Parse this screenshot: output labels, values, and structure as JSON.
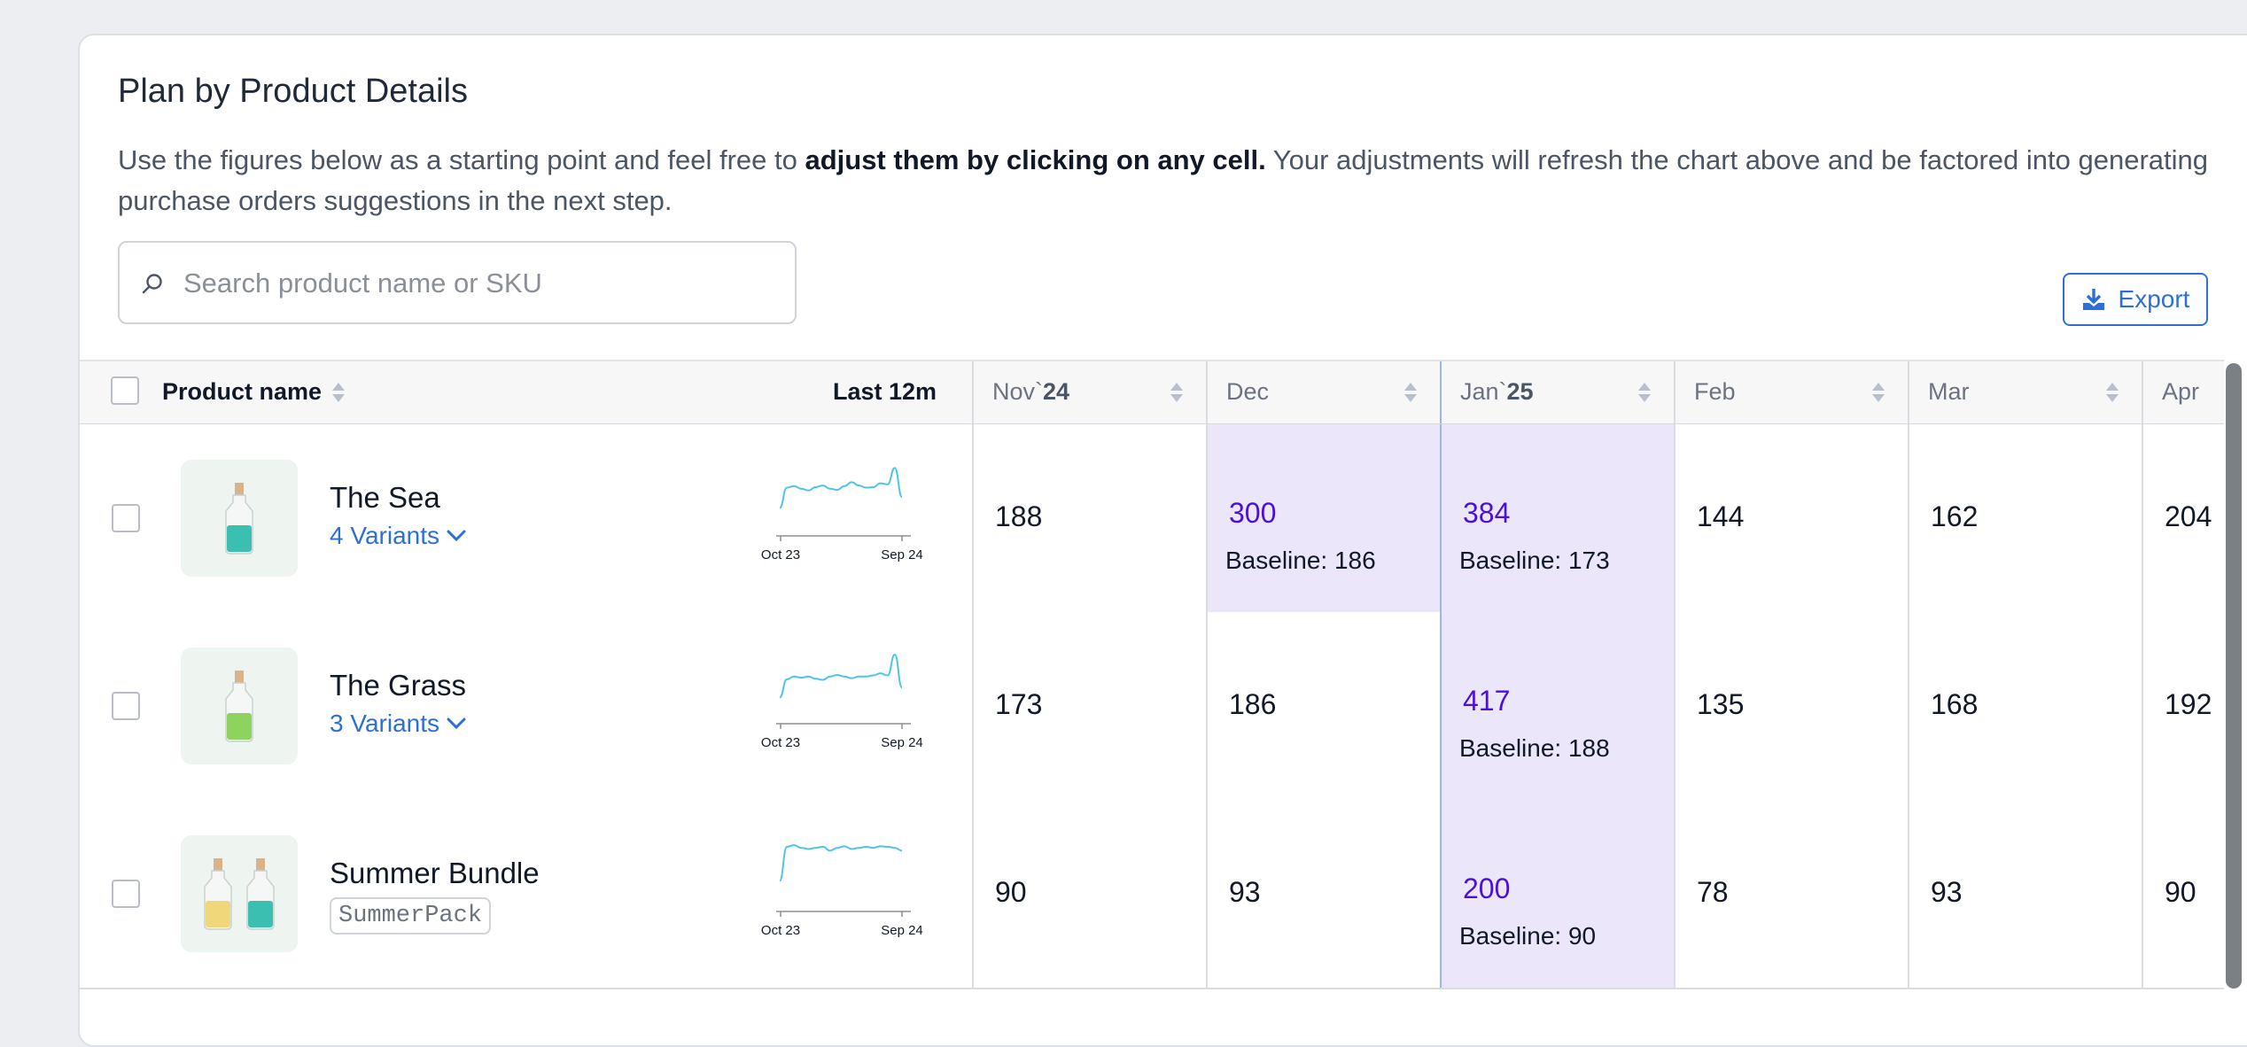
{
  "card": {
    "title": "Plan by Product Details",
    "description_pre": "Use the figures below as a starting point and feel free to ",
    "description_bold": "adjust them by clicking on any cell.",
    "description_post": " Your adjustments will refresh the chart above and be factored into generating purchase orders suggestions in the next step."
  },
  "search": {
    "placeholder": "Search product name or SKU",
    "icon": "search-icon"
  },
  "export": {
    "label": "Export",
    "icon": "download-icon"
  },
  "table": {
    "headers": {
      "product_name": "Product name",
      "last12m": "Last 12m",
      "months": [
        {
          "prefix": "Nov`",
          "bold": "24"
        },
        {
          "prefix": "Dec",
          "bold": ""
        },
        {
          "prefix": "Jan`",
          "bold": "25"
        },
        {
          "prefix": "Feb",
          "bold": ""
        },
        {
          "prefix": "Mar",
          "bold": ""
        },
        {
          "prefix": "Apr",
          "bold": ""
        }
      ]
    },
    "spark_labels": {
      "start": "Oct 23",
      "end": "Sep 24"
    },
    "rows": [
      {
        "name": "The Sea",
        "sub_type": "variants",
        "sub": "4 Variants",
        "thumb_colors": [
          "#3bbfb0"
        ],
        "spark": [
          0.25,
          0.62,
          0.65,
          0.6,
          0.57,
          0.63,
          0.66,
          0.6,
          0.58,
          0.65,
          0.72,
          0.66,
          0.62,
          0.63,
          0.7,
          0.68,
          0.98,
          0.45
        ],
        "cells": [
          {
            "value": "188",
            "adjusted": false,
            "baseline": ""
          },
          {
            "value": "300",
            "adjusted": true,
            "baseline": "Baseline: 186"
          },
          {
            "value": "384",
            "adjusted": true,
            "baseline": "Baseline: 173"
          },
          {
            "value": "144",
            "adjusted": false,
            "baseline": ""
          },
          {
            "value": "162",
            "adjusted": false,
            "baseline": ""
          },
          {
            "value": "204",
            "adjusted": false,
            "baseline": ""
          }
        ]
      },
      {
        "name": "The Grass",
        "sub_type": "variants",
        "sub": "3 Variants",
        "thumb_colors": [
          "#8fd35f"
        ],
        "spark": [
          0.22,
          0.55,
          0.6,
          0.58,
          0.6,
          0.56,
          0.54,
          0.6,
          0.63,
          0.6,
          0.57,
          0.6,
          0.6,
          0.62,
          0.66,
          0.62,
          1.0,
          0.4
        ],
        "cells": [
          {
            "value": "173",
            "adjusted": false,
            "baseline": ""
          },
          {
            "value": "186",
            "adjusted": false,
            "baseline": ""
          },
          {
            "value": "417",
            "adjusted": true,
            "baseline": "Baseline: 188"
          },
          {
            "value": "135",
            "adjusted": false,
            "baseline": ""
          },
          {
            "value": "168",
            "adjusted": false,
            "baseline": ""
          },
          {
            "value": "192",
            "adjusted": false,
            "baseline": ""
          }
        ]
      },
      {
        "name": "Summer Bundle",
        "sub_type": "sku",
        "sub": "SummerPack",
        "thumb_colors": [
          "#f0d77a",
          "#3bbfb0"
        ],
        "spark": [
          0.3,
          0.92,
          0.95,
          0.9,
          0.88,
          0.9,
          0.92,
          0.85,
          0.9,
          0.93,
          0.88,
          0.9,
          0.92,
          0.9,
          0.93,
          0.92,
          0.9,
          0.85
        ],
        "cells": [
          {
            "value": "90",
            "adjusted": false,
            "baseline": ""
          },
          {
            "value": "93",
            "adjusted": false,
            "baseline": ""
          },
          {
            "value": "200",
            "adjusted": true,
            "baseline": "Baseline: 90"
          },
          {
            "value": "78",
            "adjusted": false,
            "baseline": ""
          },
          {
            "value": "93",
            "adjusted": false,
            "baseline": ""
          },
          {
            "value": "90",
            "adjusted": false,
            "baseline": ""
          }
        ]
      }
    ]
  },
  "colors": {
    "accent": "#2d6fd6",
    "adjusted_text": "#4b10d9",
    "highlight_bg": "#ece6fb",
    "sparkline": "#4fc3e8"
  }
}
